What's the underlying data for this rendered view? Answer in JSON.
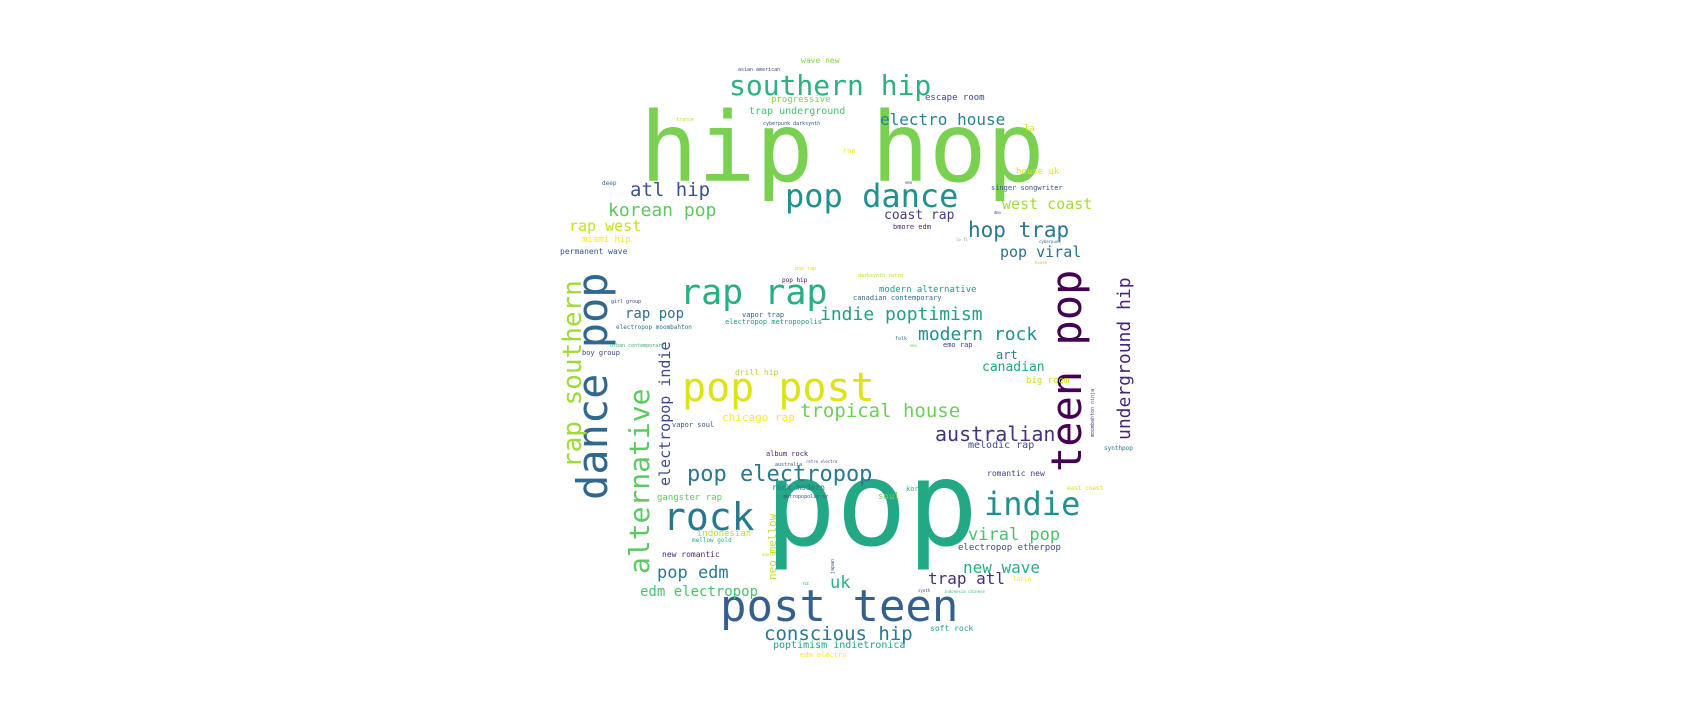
{
  "words": [
    {
      "text": "hip hop",
      "color": "#7ad151"
    },
    {
      "text": "pop",
      "color": "#22a884"
    },
    {
      "text": "post teen",
      "color": "#35608d"
    },
    {
      "text": "pop post",
      "color": "#dde318"
    },
    {
      "text": "pop dance",
      "color": "#21918c"
    },
    {
      "text": "rap rap",
      "color": "#29af7f"
    },
    {
      "text": "rock",
      "color": "#2a788e"
    },
    {
      "text": "indie",
      "color": "#21918c"
    },
    {
      "text": "southern hip",
      "color": "#2db27d"
    },
    {
      "text": "pop electropop",
      "color": "#2a788e"
    },
    {
      "text": "dance pop",
      "color": "#31688e"
    },
    {
      "text": "teen pop",
      "color": "#440154"
    },
    {
      "text": "alternative",
      "color": "#5ec962"
    },
    {
      "text": "rap southern",
      "color": "#a0da39"
    },
    {
      "text": "tropical house",
      "color": "#6ece58"
    },
    {
      "text": "australian",
      "color": "#46327e"
    },
    {
      "text": "indie poptimism",
      "color": "#1fa187"
    },
    {
      "text": "modern rock",
      "color": "#21918c"
    },
    {
      "text": "hop trap",
      "color": "#2a788e"
    },
    {
      "text": "conscious hip",
      "color": "#2a788e"
    },
    {
      "text": "atl hip",
      "color": "#3b528b"
    },
    {
      "text": "korean pop",
      "color": "#5ec962"
    },
    {
      "text": "electro house",
      "color": "#26828e"
    },
    {
      "text": "viral pop",
      "color": "#4ac16d"
    },
    {
      "text": "new wave",
      "color": "#28ae80"
    },
    {
      "text": "underground hip",
      "color": "#482475"
    },
    {
      "text": "electropop indie",
      "color": "#3e4a89"
    },
    {
      "text": "pop edm",
      "color": "#2a788e"
    },
    {
      "text": "edm electropop",
      "color": "#4ac16d"
    },
    {
      "text": "trap atl",
      "color": "#472d7b"
    },
    {
      "text": "uk",
      "color": "#2db27d"
    },
    {
      "text": "west coast",
      "color": "#a5db36"
    },
    {
      "text": "rap west",
      "color": "#c8e020"
    },
    {
      "text": "pop viral",
      "color": "#2c718e"
    },
    {
      "text": "coast rap",
      "color": "#433e85"
    },
    {
      "text": "rap pop",
      "color": "#2c728e"
    },
    {
      "text": "canadian",
      "color": "#21a585"
    },
    {
      "text": "art",
      "color": "#27808e"
    },
    {
      "text": "chicago rap",
      "color": "#fde725"
    },
    {
      "text": "neo mellow",
      "color": "#bddf26"
    },
    {
      "text": "melodic rap",
      "color": "#3e4989"
    },
    {
      "text": "poptimism indietronica",
      "color": "#20a386"
    },
    {
      "text": "trap underground",
      "color": "#4ac16d"
    },
    {
      "text": "progressive",
      "color": "#81d34d"
    },
    {
      "text": "escape room",
      "color": "#3f4889"
    },
    {
      "text": "wave new",
      "color": "#86d549"
    },
    {
      "text": "asian american",
      "color": "#3e4c8a"
    },
    {
      "text": "la",
      "color": "#d2e21b"
    },
    {
      "text": "house uk",
      "color": "#e5e419"
    },
    {
      "text": "singer songwriter",
      "color": "#3b528b"
    },
    {
      "text": "bmore edm",
      "color": "#482878"
    },
    {
      "text": "permanent wave",
      "color": "#39568c"
    },
    {
      "text": "miami hip",
      "color": "#fde725"
    },
    {
      "text": "modern alternative",
      "color": "#1e9b8a"
    },
    {
      "text": "canadian contemporary",
      "color": "#2f6c8e"
    },
    {
      "text": "vapor trap",
      "color": "#38598c"
    },
    {
      "text": "electropop metropopolis",
      "color": "#1f9a8a"
    },
    {
      "text": "electropop moombahton",
      "color": "#2c728e"
    },
    {
      "text": "emo rap",
      "color": "#443a83"
    },
    {
      "text": "drill hip",
      "color": "#a8db34"
    },
    {
      "text": "big room",
      "color": "#c0df25"
    },
    {
      "text": "vapor soul",
      "color": "#3b528b"
    },
    {
      "text": "album rock",
      "color": "#482173"
    },
    {
      "text": "romantic new",
      "color": "#414487"
    },
    {
      "text": "rock modern",
      "color": "#2a768e"
    },
    {
      "text": "gangster rap",
      "color": "#5ec962"
    },
    {
      "text": "soul",
      "color": "#73d056"
    },
    {
      "text": "korean",
      "color": "#2db27d"
    },
    {
      "text": "indonesian",
      "color": "#b5de2b"
    },
    {
      "text": "mellow gold",
      "color": "#29af7f"
    },
    {
      "text": "new romantic",
      "color": "#482878"
    },
    {
      "text": "electropop etherpop",
      "color": "#3e4989"
    },
    {
      "text": "soft rock",
      "color": "#1fa088"
    },
    {
      "text": "edm electro",
      "color": "#fde725"
    },
    {
      "text": "metropopolis nz",
      "color": "#3e4c8a"
    },
    {
      "text": "pop hip",
      "color": "#46085c"
    },
    {
      "text": "synthpop",
      "color": "#2c728e"
    },
    {
      "text": "moombahton ninja",
      "color": "#404688"
    },
    {
      "text": "east coast",
      "color": "#d8e219"
    },
    {
      "text": "folk",
      "color": "#2a768e"
    },
    {
      "text": "boy group",
      "color": "#414487"
    },
    {
      "text": "urban contemporary",
      "color": "#35b779"
    },
    {
      "text": "deep",
      "color": "#2e6f8e"
    },
    {
      "text": "rap",
      "color": "#fde725"
    },
    {
      "text": "cyberpunk darksynth",
      "color": "#3b528b"
    },
    {
      "text": "trance",
      "color": "#b8de29"
    },
    {
      "text": "dmv",
      "color": "#3e4c8a"
    },
    {
      "text": "girl group",
      "color": "#3e4c8a"
    },
    {
      "text": "darksynth retro",
      "color": "#b5de2b"
    },
    {
      "text": "retro electro",
      "color": "#3e4c8a"
    },
    {
      "text": "australia",
      "color": "#35608d"
    },
    {
      "text": "emo",
      "color": "#7ad151"
    },
    {
      "text": "japan",
      "color": "#3e4c8a"
    },
    {
      "text": "pop rap",
      "color": "#dde318"
    },
    {
      "text": "indonesia chinese",
      "color": "#35b779"
    },
    {
      "text": "cyberpunk",
      "color": "#2c728e"
    },
    {
      "text": "house",
      "color": "#a0da39"
    },
    {
      "text": "nz",
      "color": "#35b779"
    },
    {
      "text": "latin",
      "color": "#fde725"
    },
    {
      "text": "danish",
      "color": "#c2df23"
    },
    {
      "text": "emo",
      "color": "#3b528b"
    },
    {
      "text": "lo fi",
      "color": "#4ac16d"
    },
    {
      "text": "synth",
      "color": "#3e4c8a"
    }
  ]
}
